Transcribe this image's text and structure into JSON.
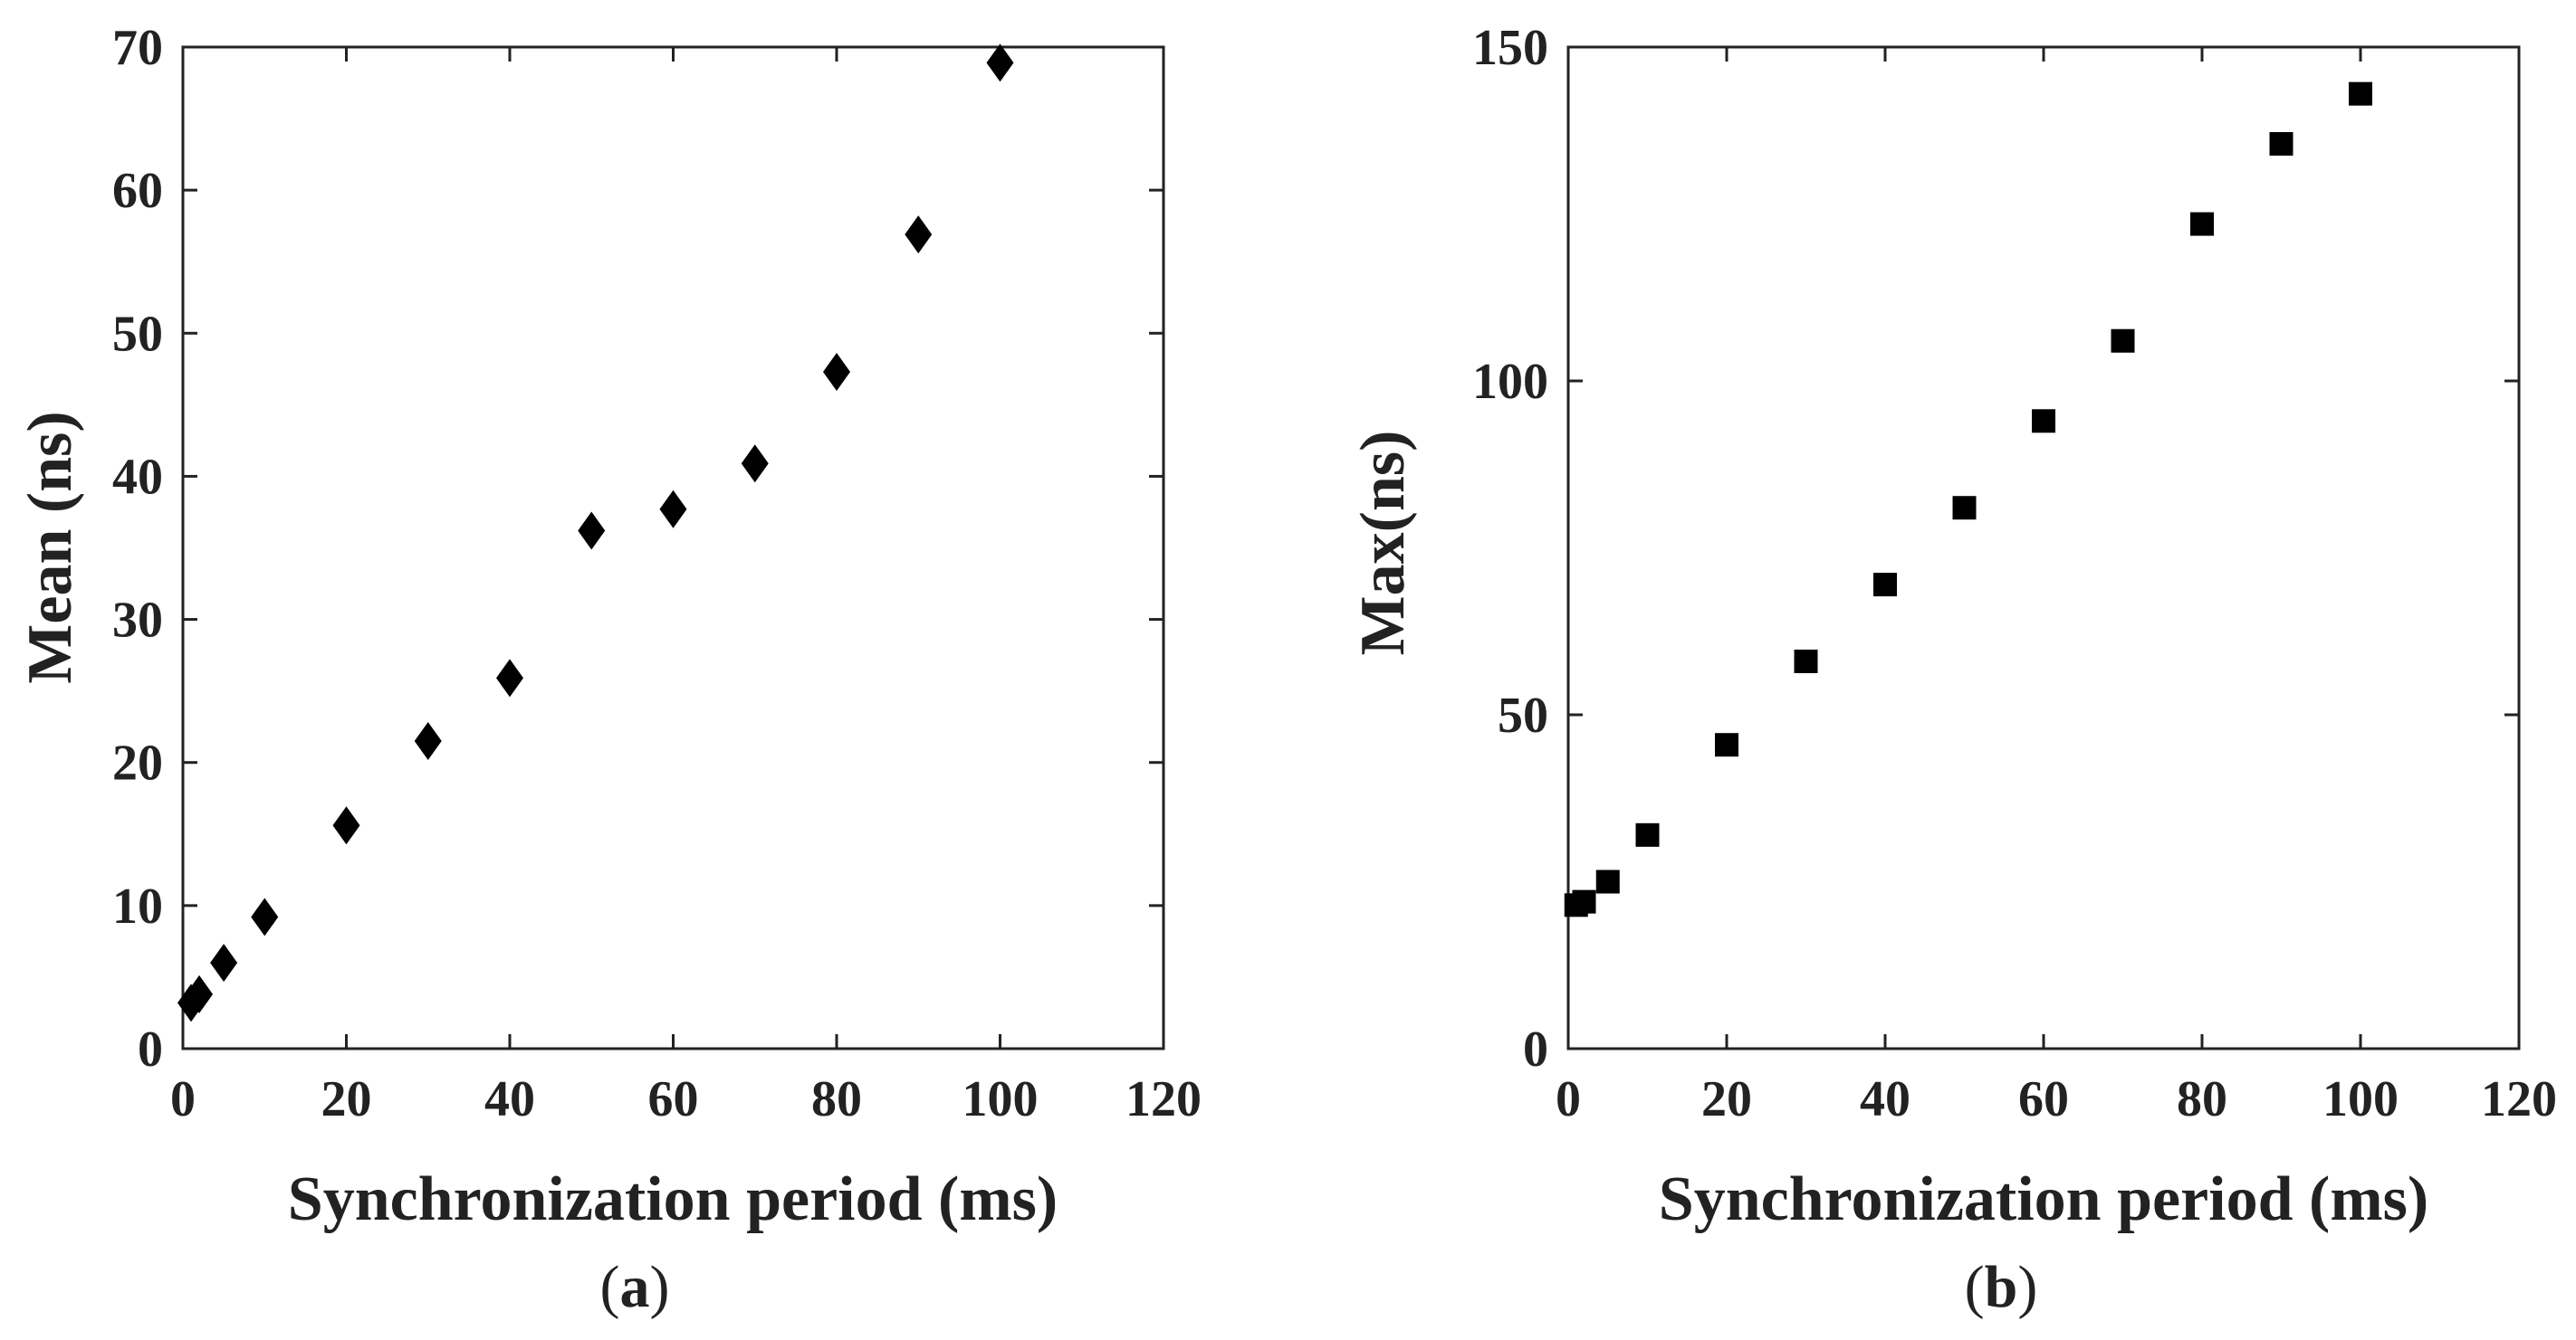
{
  "chart_data": [
    {
      "id": "a",
      "type": "scatter",
      "caption": "a",
      "title": "",
      "xlabel": "Synchronization period (ms)",
      "ylabel": "Mean (ns)",
      "xlim": [
        0,
        120
      ],
      "ylim": [
        0,
        70
      ],
      "xticks": [
        0,
        20,
        40,
        60,
        80,
        100,
        120
      ],
      "yticks": [
        0,
        10,
        20,
        30,
        40,
        50,
        60,
        70
      ],
      "grid": false,
      "legend": null,
      "marker": "diamond",
      "color": "#000000",
      "series": [
        {
          "name": "Mean",
          "x": [
            1,
            2,
            5,
            10,
            20,
            30,
            40,
            50,
            60,
            70,
            80,
            90,
            100
          ],
          "y": [
            3.2,
            3.8,
            6.0,
            9.2,
            15.6,
            21.5,
            25.9,
            36.2,
            37.7,
            40.9,
            47.3,
            56.9,
            68.9
          ]
        }
      ]
    },
    {
      "id": "b",
      "type": "scatter",
      "caption": "b",
      "title": "",
      "xlabel": "Synchronization period (ms)",
      "ylabel": "Max(ns)",
      "xlim": [
        0,
        120
      ],
      "ylim": [
        0,
        150
      ],
      "xticks": [
        0,
        20,
        40,
        60,
        80,
        100,
        120
      ],
      "yticks": [
        0,
        50,
        100,
        150
      ],
      "grid": false,
      "legend": null,
      "marker": "square",
      "color": "#000000",
      "series": [
        {
          "name": "Max",
          "x": [
            1,
            2,
            5,
            10,
            20,
            30,
            40,
            50,
            60,
            70,
            80,
            90,
            100
          ],
          "y": [
            21.5,
            22.0,
            25.0,
            32.0,
            45.5,
            58.0,
            69.5,
            81.0,
            94.0,
            106.0,
            123.5,
            135.5,
            143.0
          ]
        }
      ]
    }
  ]
}
